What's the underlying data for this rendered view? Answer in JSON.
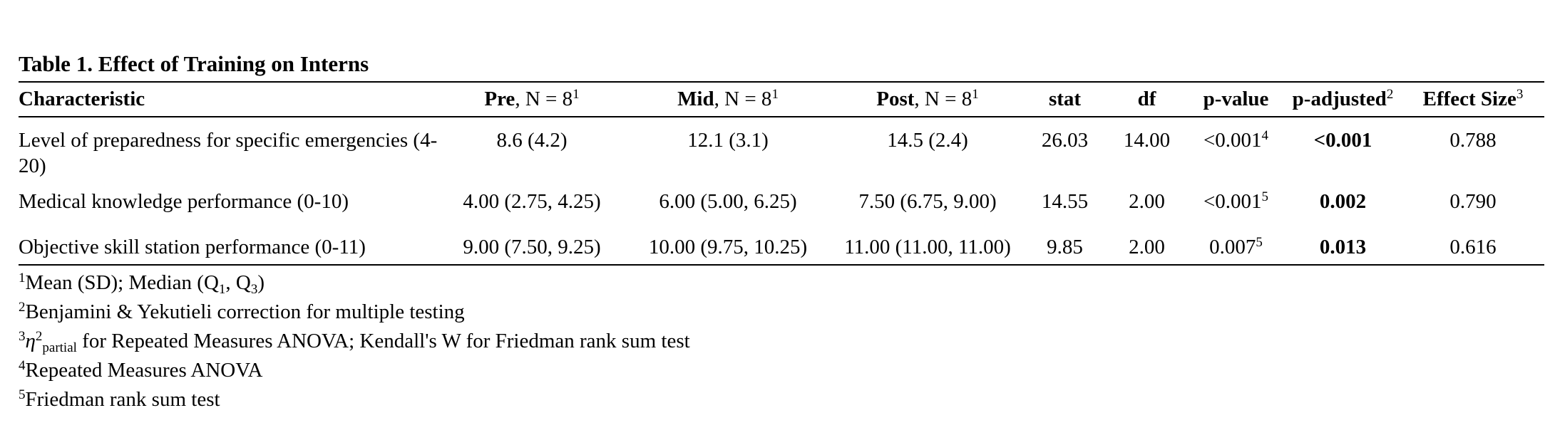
{
  "title": "Table 1. Effect of Training on Interns",
  "columns": {
    "characteristic": "Characteristic",
    "pre_bold": "Pre",
    "pre_n": ", N = 8",
    "pre_sup": "1",
    "mid_bold": "Mid",
    "mid_n": ", N = 8",
    "mid_sup": "1",
    "post_bold": "Post",
    "post_n": ", N = 8",
    "post_sup": "1",
    "stat": "stat",
    "df": "df",
    "pvalue": "p-value",
    "padjusted": "p-adjusted",
    "padjusted_sup": "2",
    "effect": "Effect Size",
    "effect_sup": "3"
  },
  "rows": [
    {
      "characteristic": "Level of preparedness for specific emergencies (4-20)",
      "pre": "8.6 (4.2)",
      "mid": "12.1 (3.1)",
      "post": "14.5 (2.4)",
      "stat": "26.03",
      "df": "14.00",
      "pvalue": "<0.001",
      "pvalue_sup": "4",
      "padjusted": "<0.001",
      "effect": "0.788"
    },
    {
      "characteristic": "Medical knowledge performance (0-10)",
      "pre": "4.00 (2.75, 4.25)",
      "mid": "6.00 (5.00, 6.25)",
      "post": "7.50 (6.75, 9.00)",
      "stat": "14.55",
      "df": "2.00",
      "pvalue": "<0.001",
      "pvalue_sup": "5",
      "padjusted": "0.002",
      "effect": "0.790"
    },
    {
      "characteristic": "Objective skill station performance (0-11)",
      "pre": "9.00 (7.50, 9.25)",
      "mid": "10.00 (9.75, 10.25)",
      "post": "11.00 (11.00, 11.00)",
      "stat": "9.85",
      "df": "2.00",
      "pvalue": "0.007",
      "pvalue_sup": "5",
      "padjusted": "0.013",
      "effect": "0.616"
    }
  ],
  "footnotes": {
    "n1": {
      "mark": "1",
      "text_a": "Mean (SD); Median (Q",
      "sub1": "1",
      "text_b": ", Q",
      "sub2": "3",
      "text_c": ")"
    },
    "n2": {
      "mark": "2",
      "text": "Benjamini & Yekutieli correction for multiple testing"
    },
    "n3": {
      "mark": "3",
      "symbol": "η",
      "sup": "2",
      "sub": "partial",
      "text": " for Repeated Measures ANOVA; Kendall's W for Friedman rank sum test"
    },
    "n4": {
      "mark": "4",
      "text": "Repeated Measures ANOVA"
    },
    "n5": {
      "mark": "5",
      "text": "Friedman rank sum test"
    }
  }
}
